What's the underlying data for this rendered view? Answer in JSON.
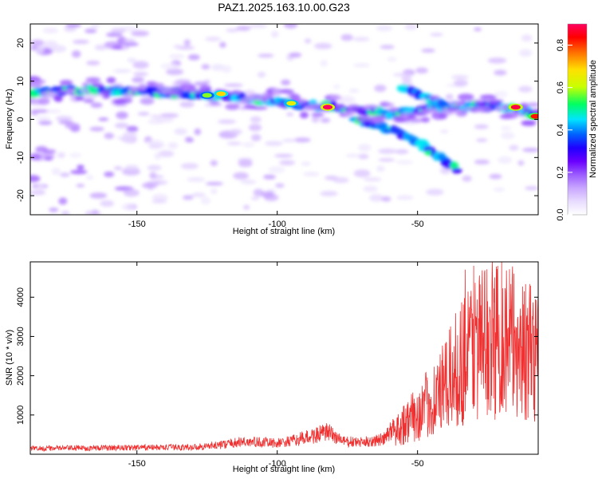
{
  "title": "PAZ1.2025.163.10.00.G23",
  "chart_data": [
    {
      "type": "heatmap",
      "xlabel": "Height of straight line (km)",
      "ylabel": "Frequency (Hz)",
      "xlim": [
        -188,
        -7
      ],
      "ylim": [
        -25,
        25
      ],
      "xticks": [
        -150,
        -100,
        -50
      ],
      "yticks": [
        -20,
        -10,
        0,
        10,
        20
      ],
      "colorbar": {
        "label": "Normalized spectral amplitude",
        "range": [
          0,
          0.9
        ],
        "ticks": [
          0.0,
          0.2,
          0.4,
          0.6,
          0.8
        ],
        "colormap": [
          "#ffffff",
          "#e8dcff",
          "#c9a6ff",
          "#9b5cff",
          "#6a00ff",
          "#1f00ff",
          "#0060ff",
          "#00e5ff",
          "#00ff60",
          "#c8ff00",
          "#ffe000",
          "#ff7000",
          "#ff0000",
          "#ff0060"
        ]
      },
      "ridge": [
        [
          -188,
          7
        ],
        [
          -175,
          7.5
        ],
        [
          -165,
          7.8
        ],
        [
          -155,
          7.5
        ],
        [
          -145,
          7.2
        ],
        [
          -135,
          6.8
        ],
        [
          -125,
          6.5
        ],
        [
          -115,
          6
        ],
        [
          -105,
          5
        ],
        [
          -95,
          4.2
        ],
        [
          -85,
          3.5
        ],
        [
          -78,
          3.2
        ],
        [
          -70,
          2.2
        ],
        [
          -60,
          1.5
        ],
        [
          -50,
          2.5
        ],
        [
          -40,
          3.2
        ],
        [
          -30,
          3.5
        ],
        [
          -20,
          3.3
        ],
        [
          -12,
          2.2
        ],
        [
          -7,
          0.8
        ]
      ],
      "branch": [
        [
          -72,
          0
        ],
        [
          -62,
          -2
        ],
        [
          -55,
          -4
        ],
        [
          -48,
          -7
        ],
        [
          -42,
          -10
        ],
        [
          -36,
          -13
        ]
      ],
      "upper_branch": [
        [
          -55,
          8
        ],
        [
          -48,
          6
        ],
        [
          -40,
          4
        ]
      ],
      "peaks": [
        {
          "x": -82,
          "y": 3.2,
          "value": 0.9
        },
        {
          "x": -15,
          "y": 3.2,
          "value": 0.88
        },
        {
          "x": -8,
          "y": 0.8,
          "value": 0.82
        },
        {
          "x": -120,
          "y": 6.7,
          "value": 0.7
        },
        {
          "x": -95,
          "y": 4.2,
          "value": 0.66
        },
        {
          "x": -125,
          "y": 6.3,
          "value": 0.6
        }
      ]
    },
    {
      "type": "line",
      "xlabel": "Height of straight line (km)",
      "ylabel": "SNR (10 * v/v)",
      "xlim": [
        -188,
        -7
      ],
      "ylim": [
        0,
        4900
      ],
      "xticks": [
        -150,
        -100,
        -50
      ],
      "yticks": [
        1000,
        2000,
        3000,
        4000
      ],
      "color": "#f03030",
      "envelope": [
        [
          -188,
          150
        ],
        [
          -170,
          160
        ],
        [
          -150,
          170
        ],
        [
          -130,
          180
        ],
        [
          -120,
          240
        ],
        [
          -112,
          320
        ],
        [
          -105,
          300
        ],
        [
          -100,
          280
        ],
        [
          -95,
          330
        ],
        [
          -90,
          420
        ],
        [
          -82,
          560
        ],
        [
          -76,
          320
        ],
        [
          -70,
          300
        ],
        [
          -62,
          380
        ],
        [
          -57,
          800
        ],
        [
          -50,
          1200
        ],
        [
          -45,
          1600
        ],
        [
          -40,
          2000
        ],
        [
          -35,
          2700
        ],
        [
          -30,
          3300
        ],
        [
          -25,
          3400
        ],
        [
          -20,
          3500
        ],
        [
          -15,
          3300
        ],
        [
          -10,
          3000
        ],
        [
          -7,
          3000
        ]
      ],
      "max_points": [
        {
          "x": -20,
          "y": 4900
        },
        {
          "x": -30,
          "y": 4800
        },
        {
          "x": -33,
          "y": 4700
        },
        {
          "x": -12,
          "y": 4150
        },
        {
          "x": -8,
          "y": 3950
        }
      ]
    }
  ]
}
